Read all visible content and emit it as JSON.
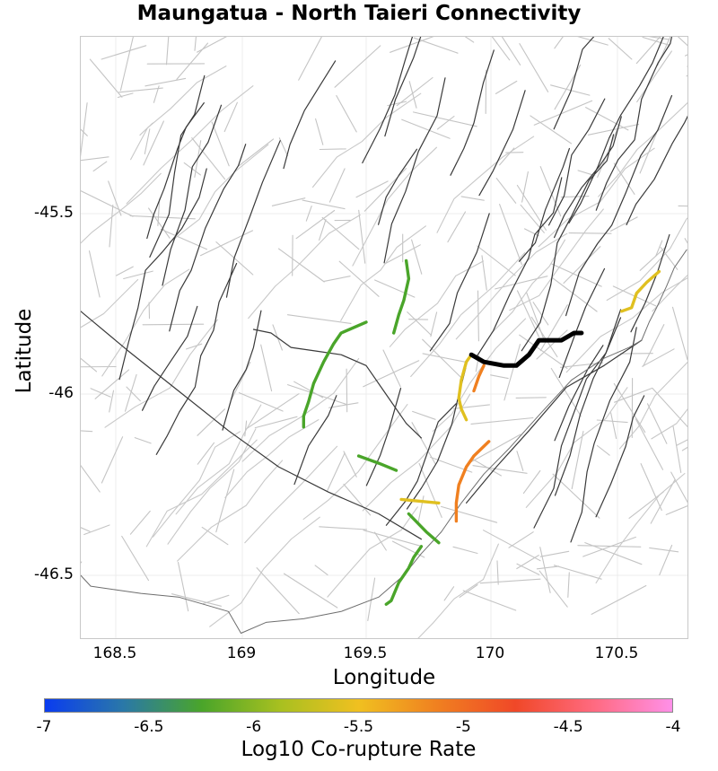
{
  "chart_data": {
    "type": "map",
    "title": "Maungatua - North Taieri Connectivity",
    "xlabel": "Longitude",
    "ylabel": "Latitude",
    "xlim": [
      168.36,
      170.78
    ],
    "ylim": [
      -46.68,
      -45.01
    ],
    "xticks": [
      "168.5",
      "169",
      "169.5",
      "170",
      "170.5"
    ],
    "yticks": [
      "-45.5",
      "-46",
      "-46.5"
    ],
    "grid": true,
    "colorbar": {
      "label": "Log10 Co-rupture Rate",
      "ticks": [
        "-7",
        "-6.5",
        "-6",
        "-5.5",
        "-5",
        "-4.5",
        "-4"
      ],
      "range": [
        -7,
        -4
      ],
      "colors": [
        "#0a3cf0",
        "#2a78a8",
        "#4aa52a",
        "#a8c020",
        "#f0c020",
        "#f08020",
        "#f04828",
        "#ff6a80",
        "#ff90e8"
      ]
    },
    "source_fault": {
      "name": "Maungatua - North Taieri",
      "color": "#000000",
      "points": [
        [
          169.92,
          -45.89
        ],
        [
          169.97,
          -45.91
        ],
        [
          170.05,
          -45.92
        ],
        [
          170.1,
          -45.92
        ],
        [
          170.15,
          -45.89
        ],
        [
          170.19,
          -45.85
        ],
        [
          170.28,
          -45.85
        ],
        [
          170.33,
          -45.83
        ],
        [
          170.36,
          -45.83
        ]
      ]
    },
    "connected_faults": [
      {
        "log10_rate": -5.7,
        "color": "#e0c020",
        "points": [
          [
            170.52,
            -45.77
          ],
          [
            170.56,
            -45.76
          ],
          [
            170.58,
            -45.72
          ],
          [
            170.62,
            -45.69
          ],
          [
            170.67,
            -45.66
          ]
        ]
      },
      {
        "log10_rate": -5.6,
        "color": "#e0c020",
        "points": [
          [
            169.92,
            -45.89
          ],
          [
            169.9,
            -45.91
          ],
          [
            169.88,
            -45.96
          ],
          [
            169.87,
            -46.01
          ],
          [
            169.88,
            -46.04
          ],
          [
            169.9,
            -46.07
          ]
        ]
      },
      {
        "log10_rate": -5.1,
        "color": "#f08020",
        "points": [
          [
            169.97,
            -45.92
          ],
          [
            169.95,
            -45.95
          ],
          [
            169.93,
            -45.99
          ]
        ]
      },
      {
        "log10_rate": -5.1,
        "color": "#f08020",
        "points": [
          [
            169.99,
            -46.13
          ],
          [
            169.93,
            -46.17
          ],
          [
            169.9,
            -46.2
          ],
          [
            169.87,
            -46.25
          ],
          [
            169.86,
            -46.3
          ],
          [
            169.86,
            -46.35
          ]
        ]
      },
      {
        "log10_rate": -6.1,
        "color": "#4aa52a",
        "points": [
          [
            169.66,
            -45.63
          ],
          [
            169.67,
            -45.68
          ],
          [
            169.65,
            -45.74
          ],
          [
            169.63,
            -45.78
          ],
          [
            169.61,
            -45.83
          ]
        ]
      },
      {
        "log10_rate": -6.1,
        "color": "#4aa52a",
        "points": [
          [
            169.5,
            -45.8
          ],
          [
            169.4,
            -45.83
          ],
          [
            169.37,
            -45.86
          ],
          [
            169.33,
            -45.91
          ],
          [
            169.29,
            -45.97
          ],
          [
            169.27,
            -46.02
          ],
          [
            169.25,
            -46.06
          ],
          [
            169.25,
            -46.09
          ]
        ]
      },
      {
        "log10_rate": -6.1,
        "color": "#4aa52a",
        "points": [
          [
            169.47,
            -46.17
          ],
          [
            169.55,
            -46.19
          ],
          [
            169.62,
            -46.21
          ]
        ]
      },
      {
        "log10_rate": -5.6,
        "color": "#e0c020",
        "points": [
          [
            169.64,
            -46.29
          ],
          [
            169.79,
            -46.3
          ]
        ]
      },
      {
        "log10_rate": -6.1,
        "color": "#4aa52a",
        "points": [
          [
            169.67,
            -46.33
          ],
          [
            169.74,
            -46.38
          ],
          [
            169.79,
            -46.41
          ]
        ]
      },
      {
        "log10_rate": -6.1,
        "color": "#4aa52a",
        "points": [
          [
            169.72,
            -46.42
          ],
          [
            169.69,
            -46.45
          ],
          [
            169.67,
            -46.48
          ],
          [
            169.63,
            -46.52
          ],
          [
            169.6,
            -46.57
          ],
          [
            169.58,
            -46.58
          ]
        ]
      }
    ]
  },
  "header": {
    "title": "Maungatua - North Taieri Connectivity"
  },
  "axes": {
    "xlabel": "Longitude",
    "ylabel": "Latitude",
    "xticks": [
      {
        "label": "168.5",
        "px": 128
      },
      {
        "label": "169",
        "px": 269
      },
      {
        "label": "169.5",
        "px": 407
      },
      {
        "label": "170",
        "px": 546
      },
      {
        "label": "170.5",
        "px": 687
      }
    ],
    "yticks": [
      {
        "label": "-45.5",
        "px": 237
      },
      {
        "label": "-46",
        "px": 438
      },
      {
        "label": "-46.5",
        "px": 640
      }
    ]
  },
  "colorbar": {
    "label": "Log10 Co-rupture Rate",
    "ticks": [
      "-7",
      "-6.5",
      "-6",
      "-5.5",
      "-5",
      "-4.5",
      "-4"
    ]
  }
}
